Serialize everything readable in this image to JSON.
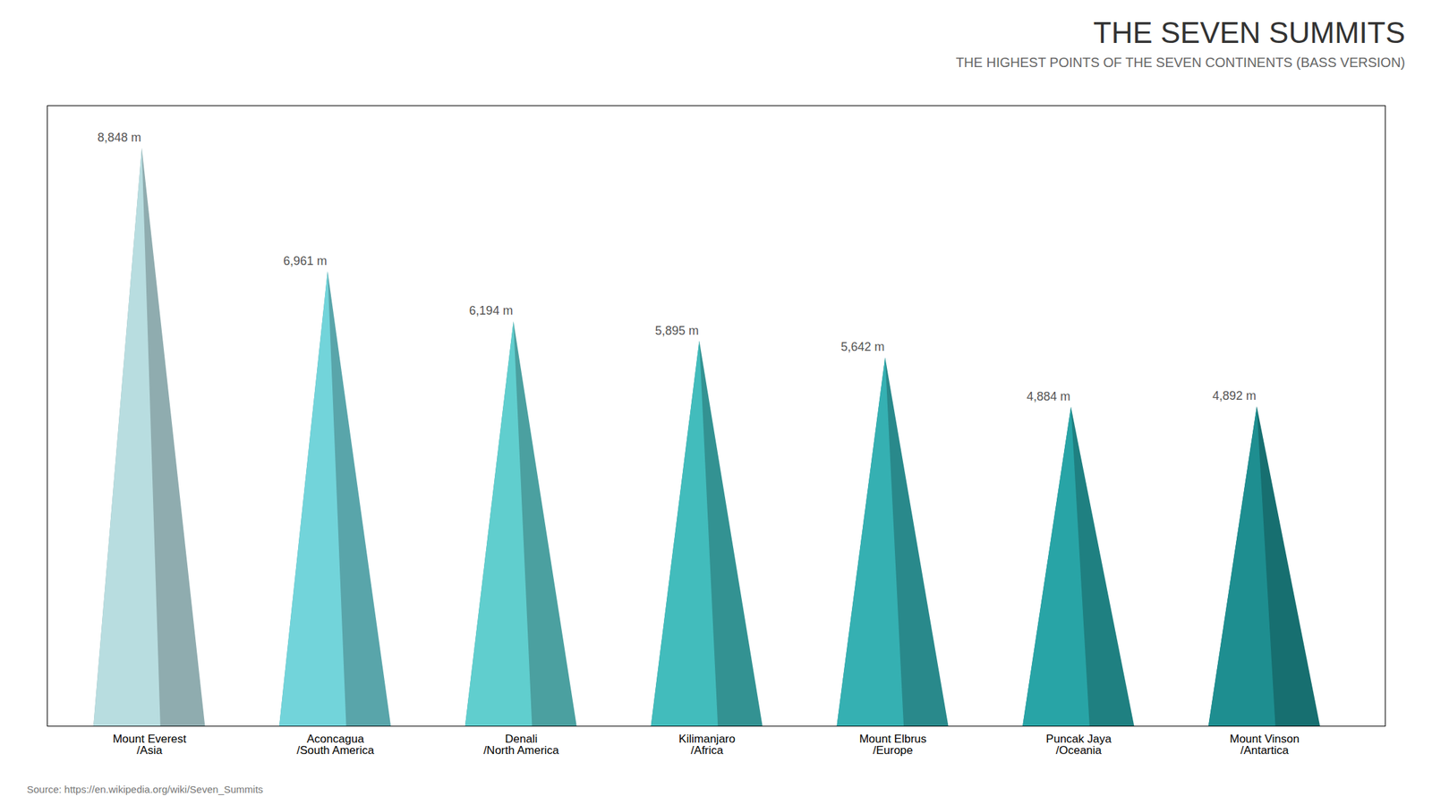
{
  "chart_data": {
    "type": "triangle",
    "title": "THE SEVEN SUMMITS",
    "subtitle": "THE HIGHEST POINTS OF THE SEVEN CONTINENTS (BASS VERSION)",
    "caption": "Source: https://en.wikipedia.org/wiki/Seven_Summits",
    "categories": [
      "Mount Everest\n/Asia",
      "Aconcagua\n/South America",
      "Denali\n/North America",
      "Kilimanjaro\n/Africa",
      "Mount Elbrus\n/Europe",
      "Puncak Jaya\n/Oceania",
      "Mount Vinson\n/Antartica"
    ],
    "values": [
      8848,
      6961,
      6194,
      5895,
      5642,
      4884,
      4892
    ],
    "value_labels": [
      "8,848 m",
      "6,961 m",
      "6,194 m",
      "5,895 m",
      "5,642 m",
      "4,884 m",
      "4,892 m"
    ],
    "colors": [
      "#b8dde0",
      "#72d4da",
      "#60cece",
      "#42bcbc",
      "#35b0b2",
      "#28a4a6",
      "#1e8e90"
    ],
    "ylim": [
      0,
      9500
    ],
    "data_labels": true,
    "tick_labels": "x",
    "grid": false
  }
}
